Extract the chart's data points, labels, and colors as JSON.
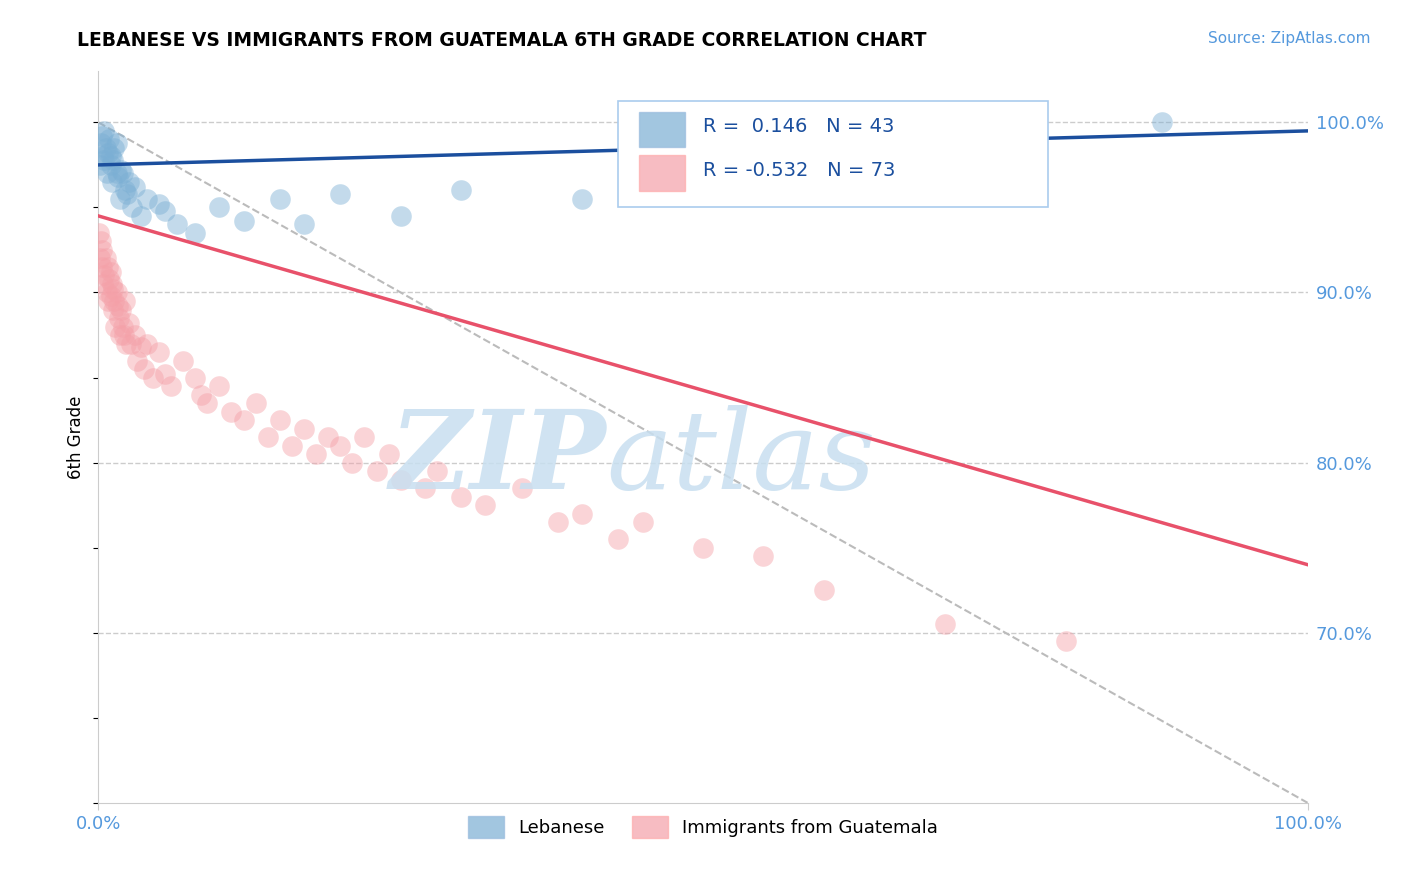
{
  "title": "LEBANESE VS IMMIGRANTS FROM GUATEMALA 6TH GRADE CORRELATION CHART",
  "source": "Source: ZipAtlas.com",
  "ylabel": "6th Grade",
  "legend_blue_label": "Lebanese",
  "legend_pink_label": "Immigrants from Guatemala",
  "R_blue": 0.146,
  "N_blue": 43,
  "R_pink": -0.532,
  "N_pink": 73,
  "blue_color": "#7BAFD4",
  "pink_color": "#F4A0A8",
  "blue_line_color": "#1B4F9E",
  "pink_line_color": "#E8516A",
  "ref_line_color": "#BBBBBB",
  "grid_color": "#CCCCCC",
  "axis_label_color": "#5599DD",
  "blue_scatter_x": [
    0.1,
    0.2,
    0.3,
    0.4,
    0.5,
    0.5,
    0.6,
    0.7,
    0.8,
    0.9,
    1.0,
    1.0,
    1.1,
    1.2,
    1.3,
    1.5,
    1.5,
    1.6,
    1.8,
    1.9,
    2.0,
    2.2,
    2.4,
    2.5,
    2.8,
    3.0,
    3.5,
    4.0,
    5.0,
    5.5,
    6.5,
    8.0,
    10.0,
    12.0,
    15.0,
    17.0,
    20.0,
    25.0,
    30.0,
    40.0,
    55.0,
    70.0,
    88.0
  ],
  "blue_scatter_y": [
    97.5,
    98.8,
    99.2,
    98.0,
    97.8,
    99.5,
    98.5,
    97.0,
    98.2,
    99.0,
    97.5,
    98.0,
    96.5,
    97.8,
    98.5,
    97.0,
    98.8,
    96.8,
    95.5,
    97.2,
    97.0,
    96.0,
    95.8,
    96.5,
    95.0,
    96.2,
    94.5,
    95.5,
    95.2,
    94.8,
    94.0,
    93.5,
    95.0,
    94.2,
    95.5,
    94.0,
    95.8,
    94.5,
    96.0,
    95.5,
    95.8,
    96.5,
    100.0
  ],
  "pink_scatter_x": [
    0.05,
    0.1,
    0.2,
    0.3,
    0.3,
    0.4,
    0.5,
    0.6,
    0.7,
    0.8,
    0.8,
    0.9,
    1.0,
    1.0,
    1.1,
    1.2,
    1.2,
    1.3,
    1.4,
    1.5,
    1.6,
    1.7,
    1.8,
    1.9,
    2.0,
    2.1,
    2.2,
    2.3,
    2.5,
    2.7,
    3.0,
    3.2,
    3.5,
    3.8,
    4.0,
    4.5,
    5.0,
    5.5,
    6.0,
    7.0,
    8.0,
    8.5,
    9.0,
    10.0,
    11.0,
    12.0,
    13.0,
    14.0,
    15.0,
    16.0,
    17.0,
    18.0,
    19.0,
    20.0,
    21.0,
    22.0,
    23.0,
    24.0,
    25.0,
    27.0,
    28.0,
    30.0,
    32.0,
    35.0,
    38.0,
    40.0,
    43.0,
    45.0,
    50.0,
    55.0,
    60.0,
    70.0,
    80.0
  ],
  "pink_scatter_y": [
    93.5,
    92.0,
    93.0,
    91.5,
    92.5,
    90.5,
    91.0,
    92.0,
    90.0,
    91.5,
    89.5,
    90.8,
    89.8,
    91.2,
    90.5,
    89.0,
    90.2,
    89.5,
    88.0,
    90.0,
    89.2,
    88.5,
    87.5,
    89.0,
    88.0,
    87.5,
    89.5,
    87.0,
    88.2,
    87.0,
    87.5,
    86.0,
    86.8,
    85.5,
    87.0,
    85.0,
    86.5,
    85.2,
    84.5,
    86.0,
    85.0,
    84.0,
    83.5,
    84.5,
    83.0,
    82.5,
    83.5,
    81.5,
    82.5,
    81.0,
    82.0,
    80.5,
    81.5,
    81.0,
    80.0,
    81.5,
    79.5,
    80.5,
    79.0,
    78.5,
    79.5,
    78.0,
    77.5,
    78.5,
    76.5,
    77.0,
    75.5,
    76.5,
    75.0,
    74.5,
    72.5,
    70.5,
    69.5
  ],
  "xmin": 0.0,
  "xmax": 100.0,
  "ymin": 60.0,
  "ymax": 103.0,
  "yticks": [
    70.0,
    80.0,
    90.0,
    100.0
  ],
  "ytick_labels": [
    "70.0%",
    "80.0%",
    "90.0%",
    "100.0%"
  ],
  "blue_trend_y0": 97.5,
  "blue_trend_y1": 99.5,
  "pink_trend_y0": 94.5,
  "pink_trend_y1": 74.0,
  "ref_line_x0": 0.0,
  "ref_line_y0": 100.0,
  "ref_line_x1": 100.0,
  "ref_line_y1": 60.0
}
